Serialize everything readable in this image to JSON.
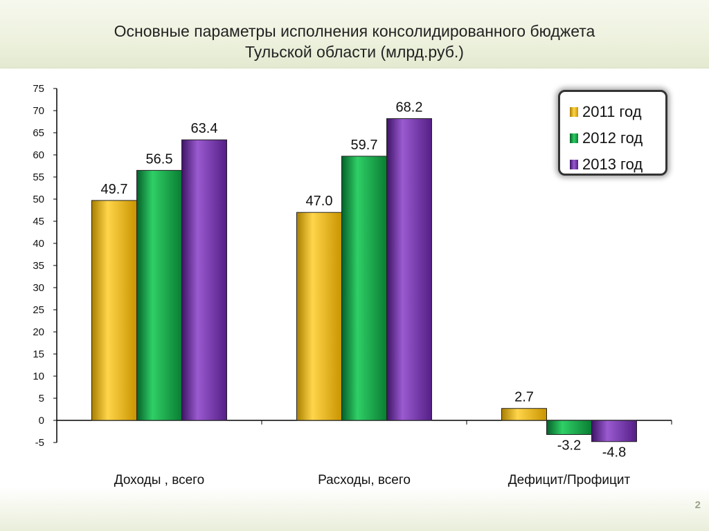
{
  "title_line1": "Основные параметры исполнения консолидированного бюджета",
  "title_line2": "Тульской области  (млрд.руб.)",
  "page_number": "2",
  "chart_data": {
    "type": "bar",
    "categories": [
      "Доходы , всего",
      "Расходы, всего",
      "Дефицит/Профицит"
    ],
    "series": [
      {
        "name": "2011 год",
        "values": [
          49.7,
          47.0,
          2.7
        ],
        "labels": [
          "49.7",
          "47.0",
          "2.7"
        ],
        "color": "#f2b705"
      },
      {
        "name": "2012 год",
        "values": [
          56.5,
          59.7,
          -3.2
        ],
        "labels": [
          "56.5",
          "59.7",
          "-3.2"
        ],
        "color": "#0d9a3c"
      },
      {
        "name": "2013 год",
        "values": [
          63.4,
          68.2,
          -4.8
        ],
        "labels": [
          "63.4",
          "68.2",
          "-4.8"
        ],
        "color": "#6a2a9c"
      }
    ],
    "ylim": [
      -5,
      75
    ],
    "yticks": [
      -5,
      0,
      5,
      10,
      15,
      20,
      25,
      30,
      35,
      40,
      45,
      50,
      55,
      60,
      65,
      70,
      75
    ],
    "legend_position": "top-right",
    "grid": false
  }
}
